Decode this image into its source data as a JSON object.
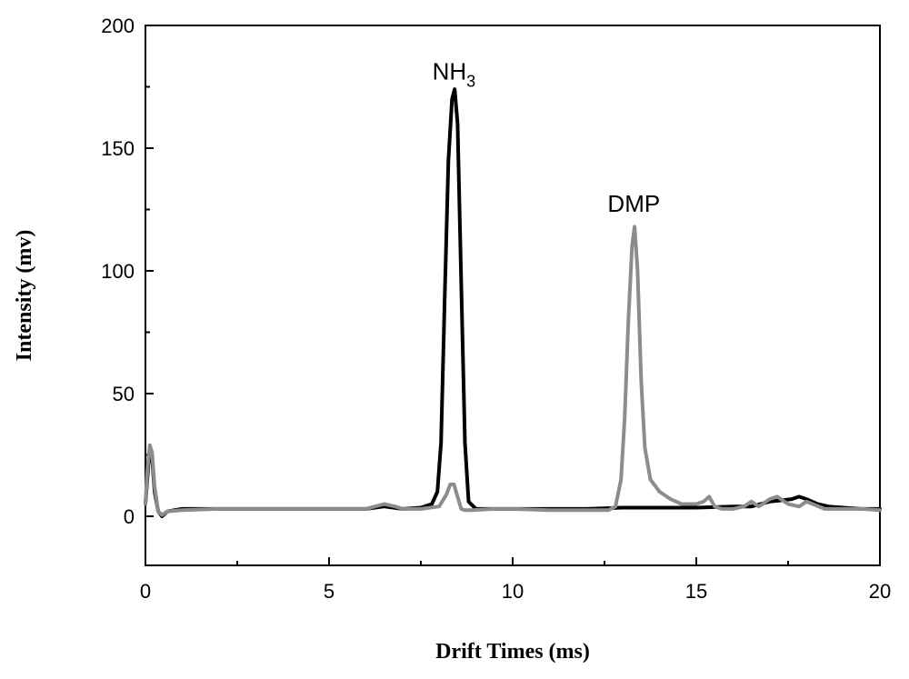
{
  "chart_data": {
    "type": "line",
    "xlabel": "Drift Times (ms)",
    "ylabel": "Intensity (mv)",
    "xlim": [
      0,
      20
    ],
    "ylim": [
      -20,
      200
    ],
    "xticks": [
      0,
      5,
      10,
      15,
      20
    ],
    "yticks": [
      0,
      50,
      100,
      150,
      200
    ],
    "grid": false,
    "legend": "none",
    "annotations": [
      {
        "text": "NH",
        "sub": "3",
        "x": 8.4,
        "y": 178
      },
      {
        "text": "DMP",
        "x": 13.3,
        "y": 124
      }
    ],
    "series": [
      {
        "color": "#000000",
        "x": [
          0,
          0.05,
          0.12,
          0.18,
          0.25,
          0.35,
          0.45,
          0.6,
          1.0,
          2.0,
          3.0,
          4.0,
          5.0,
          6.0,
          6.5,
          7.0,
          7.5,
          7.8,
          7.95,
          8.05,
          8.15,
          8.25,
          8.35,
          8.42,
          8.5,
          8.6,
          8.7,
          8.8,
          9.0,
          9.5,
          10,
          11,
          12,
          13,
          14,
          15,
          16,
          16.5,
          17,
          17.3,
          17.6,
          17.8,
          18.0,
          18.3,
          18.6,
          19,
          19.5,
          20
        ],
        "y": [
          5,
          15,
          28,
          24,
          10,
          2,
          0,
          2,
          3,
          3,
          3,
          3,
          3,
          3,
          4,
          3,
          3.5,
          5,
          10,
          30,
          90,
          145,
          170,
          174,
          160,
          95,
          30,
          6,
          3,
          3,
          3,
          3,
          3,
          3.5,
          3.5,
          3.5,
          4,
          4,
          6,
          6.5,
          7,
          8,
          7,
          5,
          4,
          3.5,
          3,
          3
        ]
      },
      {
        "color": "#8c8c8c",
        "x": [
          0,
          0.05,
          0.12,
          0.18,
          0.25,
          0.35,
          0.45,
          0.6,
          1.0,
          2.0,
          3.0,
          4.0,
          5.0,
          6.0,
          6.5,
          6.8,
          7.0,
          7.5,
          8.0,
          8.2,
          8.3,
          8.4,
          8.5,
          8.6,
          8.7,
          8.9,
          9.5,
          10,
          11,
          12,
          12.6,
          12.8,
          12.95,
          13.05,
          13.15,
          13.25,
          13.32,
          13.4,
          13.5,
          13.6,
          13.75,
          14.0,
          14.3,
          14.6,
          15.0,
          15.2,
          15.35,
          15.5,
          15.7,
          16.0,
          16.3,
          16.5,
          16.7,
          17.0,
          17.2,
          17.5,
          17.8,
          18.0,
          18.5,
          19,
          19.5,
          20
        ],
        "y": [
          5,
          18,
          29,
          26,
          12,
          2,
          0.5,
          2,
          2.5,
          3,
          3,
          3,
          3,
          3,
          5,
          4,
          3,
          3,
          4,
          9,
          13,
          13,
          8,
          3,
          2.5,
          2.5,
          3,
          3,
          2.5,
          2.5,
          2.5,
          4,
          15,
          40,
          80,
          110,
          118,
          100,
          55,
          28,
          15,
          10,
          7,
          5,
          5,
          6,
          8,
          4,
          3,
          3,
          4,
          6,
          4,
          7,
          8,
          5,
          4,
          6,
          3,
          3,
          3,
          2.5
        ]
      }
    ]
  }
}
